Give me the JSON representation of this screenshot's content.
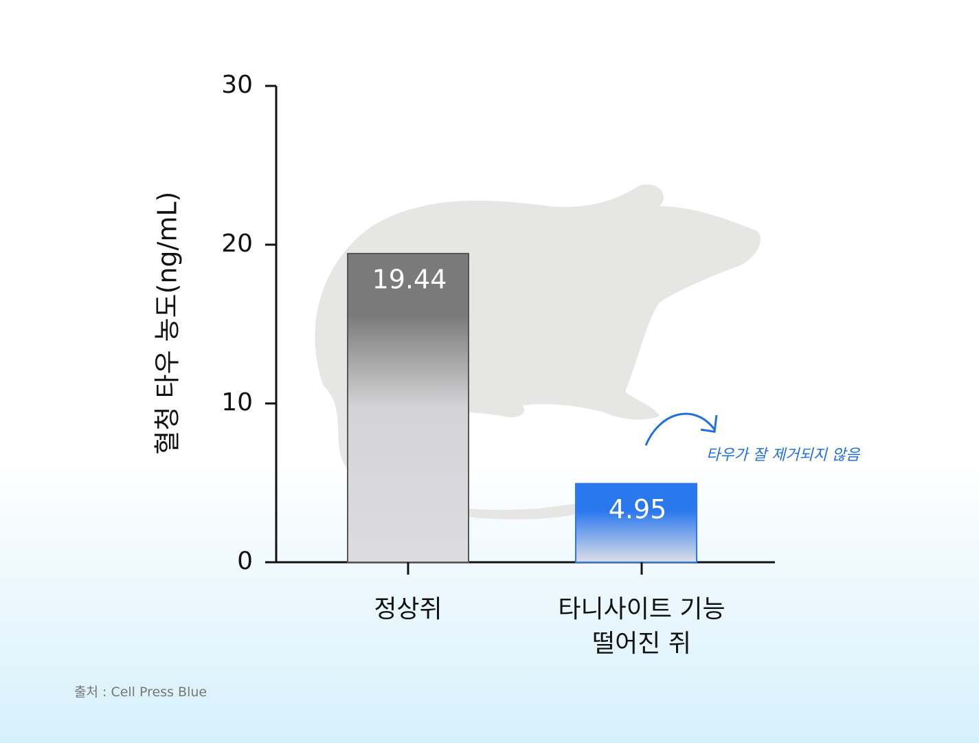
{
  "chart_data": {
    "type": "bar",
    "y_label": "혈청 타우 농도(ng/mL)",
    "categories": [
      "정상쥐",
      "타니사이트 기능 떨어진 쥐"
    ],
    "values": [
      19.44,
      4.95
    ],
    "colors": [
      "#7b7a7b",
      "#2b78ee"
    ],
    "ylim": [
      0,
      30
    ],
    "yticks": [
      0,
      10,
      20,
      30
    ],
    "annotation": "타우가 잘 제거되지 않음",
    "source": "출처 : Cell Press Blue"
  }
}
